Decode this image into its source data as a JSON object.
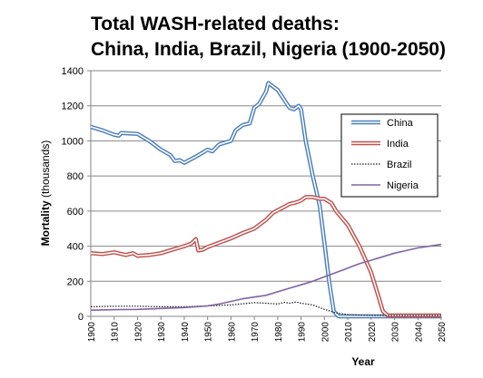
{
  "chart_data": {
    "type": "line",
    "title_lines": [
      "Total WASH-related deaths:",
      "China, India, Brazil, Nigeria (1900-2050)"
    ],
    "xlabel": "Year",
    "ylabel_main": "Mortality",
    "ylabel_unit": "(thousands)",
    "xlim": [
      1900,
      2050
    ],
    "ylim": [
      0,
      1400
    ],
    "grid": true,
    "legend_position": "right",
    "x_ticks": [
      1900,
      1910,
      1920,
      1930,
      1940,
      1950,
      1960,
      1970,
      1980,
      1990,
      2000,
      2010,
      2020,
      2030,
      2040,
      2050
    ],
    "y_ticks": [
      0,
      200,
      400,
      600,
      800,
      1000,
      1200,
      1400
    ],
    "x_tick_labels": [
      "1900",
      "1910",
      "1920",
      "1930",
      "1940",
      "1950",
      "1960",
      "1970",
      "1980",
      "1990",
      "2000",
      "2010",
      "2020",
      "2030",
      "2040",
      "2050"
    ],
    "y_tick_labels": [
      "0",
      "200",
      "400",
      "600",
      "800",
      "1000",
      "1200",
      "1400"
    ],
    "series": [
      {
        "name": "China",
        "color": "#4a7ebb",
        "style": "double",
        "x": [
          1900,
          1905,
          1910,
          1912,
          1913,
          1920,
          1925,
          1930,
          1934,
          1936,
          1938,
          1940,
          1945,
          1950,
          1952,
          1955,
          1960,
          1962,
          1965,
          1968,
          1970,
          1972,
          1975,
          1976,
          1978,
          1980,
          1982,
          1985,
          1987,
          1989,
          1990,
          1992,
          1995,
          1998,
          2000,
          2002,
          2004,
          2006,
          2010,
          2020,
          2030,
          2040,
          2050
        ],
        "y": [
          1080,
          1060,
          1035,
          1030,
          1045,
          1040,
          1000,
          950,
          920,
          885,
          890,
          875,
          910,
          950,
          940,
          980,
          1000,
          1060,
          1090,
          1100,
          1190,
          1210,
          1280,
          1330,
          1310,
          1290,
          1250,
          1190,
          1180,
          1200,
          1180,
          1000,
          800,
          630,
          420,
          200,
          30,
          0,
          0,
          0,
          0,
          0,
          0
        ]
      },
      {
        "name": "India",
        "color": "#c0504d",
        "style": "double",
        "x": [
          1900,
          1905,
          1910,
          1915,
          1918,
          1920,
          1925,
          1930,
          1935,
          1940,
          1943,
          1945,
          1946,
          1948,
          1950,
          1955,
          1960,
          1965,
          1970,
          1975,
          1978,
          1980,
          1983,
          1985,
          1988,
          1990,
          1992,
          1995,
          1998,
          2000,
          2003,
          2005,
          2010,
          2015,
          2020,
          2023,
          2025,
          2027,
          2030,
          2040,
          2050
        ],
        "y": [
          360,
          355,
          365,
          350,
          360,
          345,
          350,
          360,
          380,
          400,
          415,
          440,
          375,
          380,
          395,
          420,
          445,
          475,
          500,
          550,
          590,
          605,
          625,
          640,
          650,
          660,
          680,
          680,
          670,
          670,
          645,
          600,
          520,
          400,
          250,
          120,
          30,
          5,
          5,
          5,
          5
        ]
      },
      {
        "name": "Brazil",
        "color": "#1a1a1a",
        "style": "dotted",
        "x": [
          1900,
          1910,
          1920,
          1930,
          1940,
          1950,
          1960,
          1965,
          1970,
          1975,
          1980,
          1983,
          1985,
          1988,
          1990,
          1995,
          2000,
          2005,
          2010,
          2020,
          2030,
          2040,
          2050
        ],
        "y": [
          55,
          58,
          58,
          55,
          55,
          60,
          65,
          72,
          78,
          75,
          70,
          80,
          75,
          82,
          75,
          65,
          40,
          20,
          10,
          5,
          5,
          5,
          5
        ]
      },
      {
        "name": "Nigeria",
        "color": "#8064a2",
        "style": "solid",
        "x": [
          1900,
          1910,
          1920,
          1930,
          1940,
          1950,
          1955,
          1960,
          1965,
          1970,
          1975,
          1980,
          1985,
          1990,
          1995,
          2000,
          2005,
          2010,
          2015,
          2020,
          2025,
          2030,
          2035,
          2040,
          2045,
          2050
        ],
        "y": [
          35,
          38,
          40,
          45,
          50,
          60,
          70,
          85,
          100,
          110,
          120,
          140,
          160,
          180,
          200,
          225,
          250,
          275,
          300,
          320,
          340,
          360,
          375,
          390,
          400,
          410
        ]
      }
    ]
  }
}
